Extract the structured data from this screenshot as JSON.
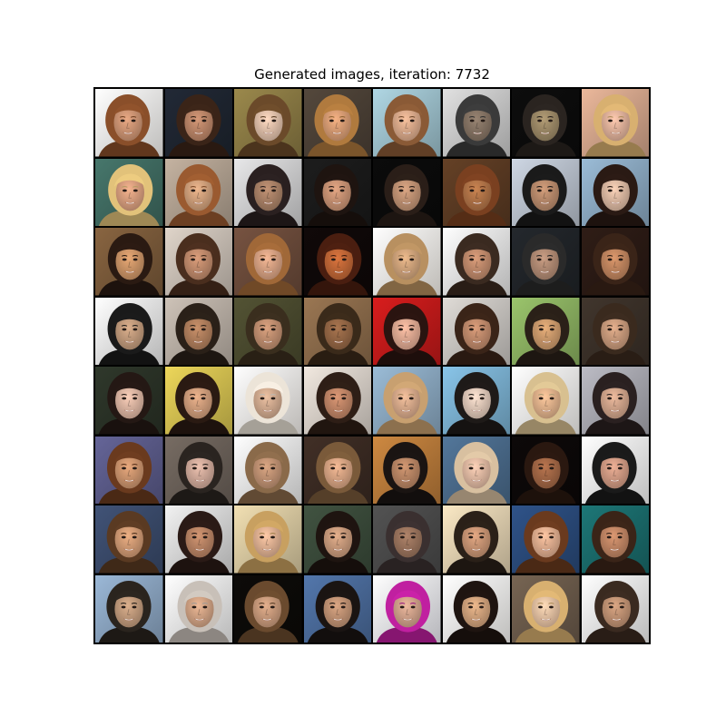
{
  "figure": {
    "title": "Generated images, iteration: 7732"
  },
  "grid": {
    "rows": 8,
    "cols": 8,
    "tiles": [
      {
        "bg": "#f4f2f0",
        "skin": "#d59a78",
        "hair": "#8a4f2a"
      },
      {
        "bg": "#1e2530",
        "skin": "#c28a6c",
        "hair": "#3a2418"
      },
      {
        "bg": "#8a7a44",
        "skin": "#e8c7b0",
        "hair": "#6b4a2a"
      },
      {
        "bg": "#4b4036",
        "skin": "#e0a278",
        "hair": "#b07a3e"
      },
      {
        "bg": "#9dc0cc",
        "skin": "#e2b090",
        "hair": "#8a5a36"
      },
      {
        "bg": "#c9c9c9",
        "skin": "#8a7868",
        "hair": "#3a3a3a"
      },
      {
        "bg": "#0c0c0c",
        "skin": "#a28e6a",
        "hair": "#2a2420"
      },
      {
        "bg": "#d2a48a",
        "skin": "#e8b8a0",
        "hair": "#d8b070"
      },
      {
        "bg": "#3f6a60",
        "skin": "#e0a482",
        "hair": "#e2c27a"
      },
      {
        "bg": "#b0a090",
        "skin": "#d8a680",
        "hair": "#9a5a30"
      },
      {
        "bg": "#cfcfd0",
        "skin": "#b0866a",
        "hair": "#2a2020"
      },
      {
        "bg": "#1a1a1a",
        "skin": "#d09878",
        "hair": "#1e1410"
      },
      {
        "bg": "#0a0a0a",
        "skin": "#c89878",
        "hair": "#2a1e18"
      },
      {
        "bg": "#5a3a22",
        "skin": "#b8784a",
        "hair": "#7a4020"
      },
      {
        "bg": "#b8c0cc",
        "skin": "#c09070",
        "hair": "#1a1a1a"
      },
      {
        "bg": "#8aa8c0",
        "skin": "#e4c0a8",
        "hair": "#2a1a14"
      },
      {
        "bg": "#7a5a3a",
        "skin": "#d49a6a",
        "hair": "#2a1a12"
      },
      {
        "bg": "#c8beb4",
        "skin": "#c89070",
        "hair": "#4a2e1e"
      },
      {
        "bg": "#6a4a3a",
        "skin": "#e0a888",
        "hair": "#a06838"
      },
      {
        "bg": "#0e0808",
        "skin": "#c86a38",
        "hair": "#4a1e10"
      },
      {
        "bg": "#f2eee8",
        "skin": "#d8aa80",
        "hair": "#b89060"
      },
      {
        "bg": "#e4e4e4",
        "skin": "#c89070",
        "hair": "#3a2a20"
      },
      {
        "bg": "#202428",
        "skin": "#b89078",
        "hair": "#2a2a2a"
      },
      {
        "bg": "#2a1a14",
        "skin": "#c88a62",
        "hair": "#3a2418"
      },
      {
        "bg": "#e8e8e8",
        "skin": "#c8a080",
        "hair": "#1a1a1a"
      },
      {
        "bg": "#b8aea4",
        "skin": "#b88460",
        "hair": "#2a2018"
      },
      {
        "bg": "#4a4a2e",
        "skin": "#c89474",
        "hair": "#3a2e1e"
      },
      {
        "bg": "#8a6a4a",
        "skin": "#9a6a48",
        "hair": "#3a2a1a"
      },
      {
        "bg": "#c21a1a",
        "skin": "#e8b098",
        "hair": "#2a1410"
      },
      {
        "bg": "#c8c4c0",
        "skin": "#c89070",
        "hair": "#3a2418"
      },
      {
        "bg": "#8ab060",
        "skin": "#d4a070",
        "hair": "#2a2018"
      },
      {
        "bg": "#3a3028",
        "skin": "#d0a080",
        "hair": "#3a2a1e"
      },
      {
        "bg": "#2a3226",
        "skin": "#e4bca8",
        "hair": "#241814"
      },
      {
        "bg": "#d4c050",
        "skin": "#d8a480",
        "hair": "#2a1a12"
      },
      {
        "bg": "#f0ece8",
        "skin": "#d8b094",
        "hair": "#ece4d8"
      },
      {
        "bg": "#d8d0c8",
        "skin": "#c88a6a",
        "hair": "#2e1e16"
      },
      {
        "bg": "#8aa8c0",
        "skin": "#e0b090",
        "hair": "#c8a070"
      },
      {
        "bg": "#7ab0d0",
        "skin": "#e8d0c0",
        "hair": "#1e1a18"
      },
      {
        "bg": "#f4f2f0",
        "skin": "#e8b890",
        "hair": "#d8c090"
      },
      {
        "bg": "#a8a8b0",
        "skin": "#d8aa90",
        "hair": "#2a2020"
      },
      {
        "bg": "#5a5a88",
        "skin": "#d49a72",
        "hair": "#6a3a1e"
      },
      {
        "bg": "#6a6058",
        "skin": "#d8b0a0",
        "hair": "#2a2420"
      },
      {
        "bg": "#e8e8e8",
        "skin": "#c89878",
        "hair": "#8a6a4a"
      },
      {
        "bg": "#3a2a22",
        "skin": "#e0aa88",
        "hair": "#7a5a3a"
      },
      {
        "bg": "#b87a3a",
        "skin": "#c08a68",
        "hair": "#1a1412"
      },
      {
        "bg": "#4a6a8a",
        "skin": "#e8c0a8",
        "hair": "#d8c0a0"
      },
      {
        "bg": "#0c0808",
        "skin": "#a86a48",
        "hair": "#2a1810"
      },
      {
        "bg": "#f4f4f4",
        "skin": "#d8a088",
        "hair": "#1a1a1a"
      },
      {
        "bg": "#3a4a6a",
        "skin": "#d8a078",
        "hair": "#5a3a22"
      },
      {
        "bg": "#d8d8d8",
        "skin": "#c08868",
        "hair": "#2a1a16"
      },
      {
        "bg": "#d8c8a0",
        "skin": "#e8b898",
        "hair": "#c8a060"
      },
      {
        "bg": "#3a4a3a",
        "skin": "#d0a080",
        "hair": "#1e1410"
      },
      {
        "bg": "#4a4a4a",
        "skin": "#a07860",
        "hair": "#3a3030"
      },
      {
        "bg": "#e0d0b0",
        "skin": "#d09a78",
        "hair": "#2a2018"
      },
      {
        "bg": "#2a4a7a",
        "skin": "#e8b494",
        "hair": "#6a3a1e"
      },
      {
        "bg": "#1a6a6a",
        "skin": "#c88a68",
        "hair": "#3a2418"
      },
      {
        "bg": "#8aa4c0",
        "skin": "#c8a080",
        "hair": "#2a241e"
      },
      {
        "bg": "#ececec",
        "skin": "#d8a888",
        "hair": "#c8c0b8"
      },
      {
        "bg": "#0c0a08",
        "skin": "#d0a080",
        "hair": "#6a4a2e"
      },
      {
        "bg": "#4a6a9a",
        "skin": "#c89878",
        "hair": "#1a1412"
      },
      {
        "bg": "#e8e8ee",
        "skin": "#d8a890",
        "hair": "#c020a0"
      },
      {
        "bg": "#f4f2f0",
        "skin": "#d8a880",
        "hair": "#1e1410"
      },
      {
        "bg": "#6a5a4a",
        "skin": "#f0c8a8",
        "hair": "#d8b070"
      },
      {
        "bg": "#eeeeee",
        "skin": "#c89878",
        "hair": "#3a2a20"
      }
    ]
  }
}
